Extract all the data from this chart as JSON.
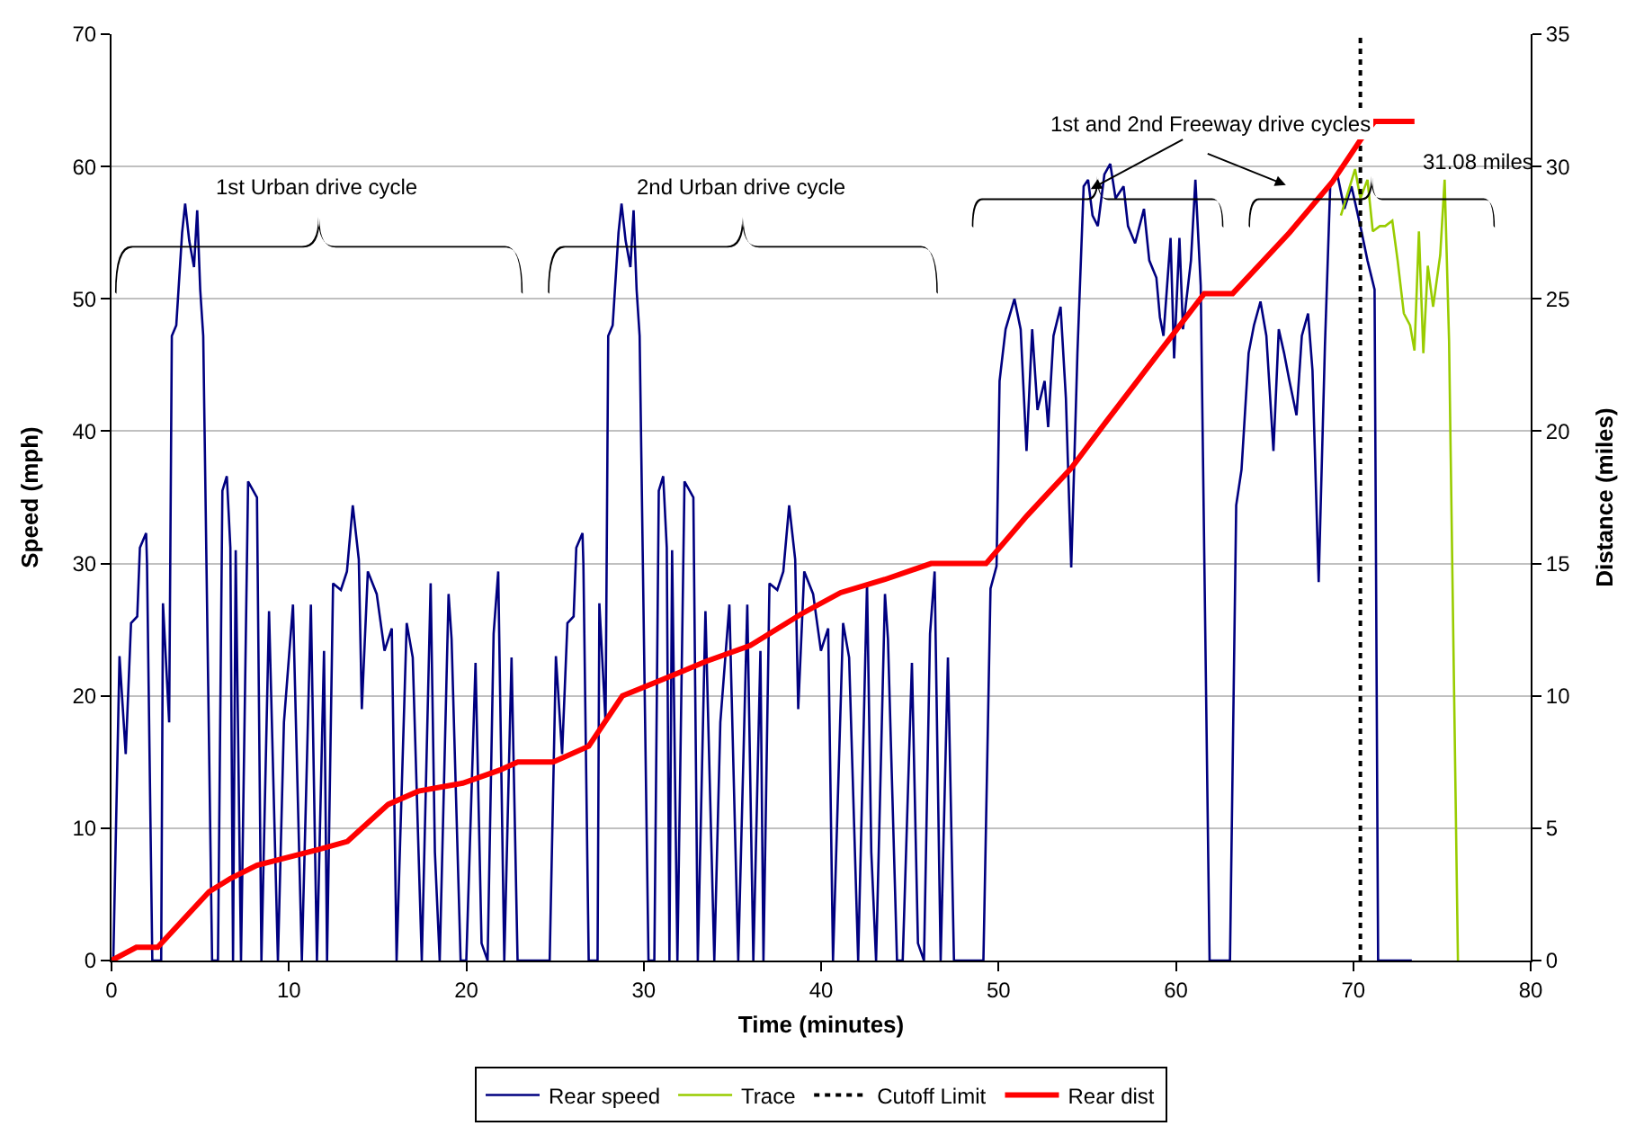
{
  "chart_data": {
    "type": "line",
    "xlabel": "Time (minutes)",
    "ylabel": "Speed (mph)",
    "y2label": "Distance (miles)",
    "xlim": [
      0,
      80
    ],
    "xticks": [
      0,
      10,
      20,
      30,
      40,
      50,
      60,
      70,
      80
    ],
    "ylim": [
      0,
      70
    ],
    "yticks": [
      0,
      10,
      20,
      30,
      40,
      50,
      60,
      70
    ],
    "y2lim": [
      0,
      35
    ],
    "y2ticks": [
      0,
      5,
      10,
      15,
      20,
      25,
      30,
      35
    ],
    "grid": "y",
    "legend": "bottom",
    "marker": "none",
    "line_style": "solid",
    "series": [
      {
        "name": "Rear speed",
        "color": "#000080",
        "x": [
          0,
          0.1,
          0.45,
          0.8,
          1.1,
          1.45,
          1.6,
          1.95,
          2.0,
          2.3,
          2.8,
          2.9,
          3.25,
          3.4,
          3.65,
          3.98,
          4.15,
          4.38,
          4.65,
          4.83,
          5.0,
          5.17,
          5.67,
          6.0,
          6.25,
          6.5,
          6.7,
          6.85,
          7.0,
          7.3,
          7.7,
          8.2,
          8.45,
          8.88,
          9.38,
          9.72,
          10.23,
          10.73,
          11.24,
          11.58,
          11.98,
          12.15,
          12.49,
          12.93,
          13.27,
          13.6,
          13.94,
          14.11,
          14.45,
          14.95,
          15.39,
          15.8,
          16.07,
          16.64,
          16.98,
          17.49,
          17.99,
          18.23,
          18.5,
          19.0,
          19.17,
          19.68,
          20.0,
          20.52,
          20.86,
          21.2,
          21.54,
          21.8,
          22.14,
          22.55,
          22.89,
          24.7,
          25.05,
          25.4,
          25.7,
          26.05,
          26.2,
          26.55,
          26.6,
          26.9,
          27.4,
          27.5,
          27.85,
          28.0,
          28.25,
          28.58,
          28.75,
          28.98,
          29.25,
          29.43,
          29.6,
          29.77,
          30.27,
          30.6,
          30.85,
          31.1,
          31.3,
          31.45,
          31.6,
          31.9,
          32.3,
          32.8,
          33.05,
          33.48,
          33.98,
          34.32,
          34.83,
          35.33,
          35.84,
          36.18,
          36.58,
          36.75,
          37.09,
          37.53,
          37.87,
          38.2,
          38.54,
          38.71,
          39.05,
          39.55,
          39.99,
          40.4,
          40.67,
          41.24,
          41.58,
          42.09,
          42.59,
          42.83,
          43.1,
          43.6,
          43.77,
          44.28,
          44.6,
          45.12,
          45.46,
          45.8,
          46.14,
          46.4,
          46.74,
          47.15,
          47.49,
          49.15,
          49.55,
          49.89,
          50.06,
          50.4,
          50.9,
          51.25,
          51.58,
          51.9,
          52.2,
          52.6,
          52.8,
          53.1,
          53.5,
          53.8,
          54.1,
          54.45,
          54.8,
          55.05,
          55.3,
          55.6,
          55.97,
          56.3,
          56.6,
          57.05,
          57.3,
          57.7,
          58.2,
          58.5,
          58.9,
          59.1,
          59.3,
          59.7,
          59.9,
          60.2,
          60.4,
          60.85,
          61.1,
          61.4,
          61.9,
          63.05,
          63.4,
          63.7,
          64.1,
          64.4,
          64.77,
          65.1,
          65.5,
          65.8,
          66.1,
          66.4,
          66.8,
          67.1,
          67.45,
          67.7,
          68.05,
          68.4,
          68.7,
          69.1,
          69.5,
          69.9,
          70.4,
          70.8,
          71.2,
          71.4,
          73.3
        ],
        "values": [
          0,
          0,
          23,
          15.6,
          25.5,
          26,
          31.2,
          32.3,
          30,
          0,
          0,
          27,
          18,
          47.2,
          48,
          55,
          57.2,
          54.4,
          52.4,
          56.7,
          50.7,
          47.2,
          0,
          0,
          35.5,
          36.6,
          31.2,
          0,
          31,
          0,
          36.2,
          35,
          0,
          26.4,
          0,
          18,
          26.9,
          0,
          26.9,
          0,
          23.4,
          0,
          28.5,
          28,
          29.4,
          34.4,
          30.3,
          19,
          29.4,
          27.7,
          23.4,
          25.1,
          0,
          25.5,
          22.9,
          0,
          28.5,
          8.2,
          0,
          27.7,
          24.3,
          0,
          0,
          22.5,
          1.3,
          0,
          24.7,
          29.4,
          0,
          22.9,
          0,
          0,
          23,
          15.6,
          25.5,
          26,
          31.2,
          32.3,
          30,
          0,
          0,
          27,
          18,
          47.2,
          48,
          55,
          57.2,
          54.4,
          52.4,
          56.7,
          50.7,
          47.2,
          0,
          0,
          35.5,
          36.6,
          31.2,
          0,
          31,
          0,
          36.2,
          35,
          0,
          26.4,
          0,
          18,
          26.9,
          0,
          26.9,
          0,
          23.4,
          0,
          28.5,
          28,
          29.4,
          34.4,
          30.3,
          19,
          29.4,
          27.7,
          23.4,
          25.1,
          0,
          25.5,
          22.9,
          0,
          28.5,
          8.2,
          0,
          27.7,
          24.3,
          0,
          0,
          22.5,
          1.3,
          0,
          24.7,
          29.4,
          0,
          22.9,
          0,
          0,
          28.1,
          29.8,
          43.8,
          47.7,
          50,
          47.7,
          38.5,
          47.7,
          41.6,
          43.8,
          40.3,
          47.2,
          49.4,
          42.5,
          29.7,
          45.9,
          58.5,
          59,
          56.3,
          55.5,
          59.4,
          60.2,
          57.6,
          58.5,
          55.5,
          54.2,
          56.8,
          52.9,
          51.6,
          48.6,
          47.2,
          54.6,
          45.5,
          54.6,
          47.7,
          52.9,
          59,
          51,
          0,
          0,
          34.4,
          37.1,
          45.9,
          48,
          49.8,
          47.2,
          38.5,
          47.7,
          45.9,
          43.8,
          41.2,
          47.2,
          48.9,
          44.6,
          28.6,
          46.4,
          58.5,
          59.4,
          56.8,
          58.5,
          55.5,
          52.9,
          50.7,
          0,
          0
        ]
      },
      {
        "name": "Trace",
        "color": "#99cc00",
        "x": [
          69.3,
          69.6,
          70.1,
          70.4,
          70.8,
          71.1,
          71.5,
          71.8,
          72.2,
          72.5,
          72.85,
          73.2,
          73.45,
          73.7,
          73.95,
          74.2,
          74.5,
          74.9,
          75.15,
          75.4,
          75.9
        ],
        "values": [
          56.3,
          57.6,
          59.8,
          57.6,
          59,
          55.1,
          55.5,
          55.5,
          55.9,
          52.9,
          48.9,
          48,
          46.1,
          55.1,
          45.9,
          52.5,
          49.4,
          53.3,
          59,
          46.8,
          0
        ]
      },
      {
        "name": "Rear dist",
        "color": "#ff0000",
        "axis": "y2",
        "x": [
          0,
          1.4,
          2.6,
          5.5,
          6.7,
          8.2,
          11.7,
          13.3,
          15.6,
          17.3,
          19.8,
          21.9,
          22.9,
          24.9,
          26.9,
          28.8,
          31,
          33.5,
          36,
          38.9,
          41.1,
          43.6,
          46.2,
          49.3,
          51.6,
          54.1,
          56,
          61.6,
          63.2,
          66.4,
          68.8,
          70.4,
          71.2,
          73.45
        ],
        "values": [
          0,
          0.5,
          0.5,
          2.6,
          3.1,
          3.6,
          4.2,
          4.5,
          5.9,
          6.4,
          6.7,
          7.2,
          7.5,
          7.5,
          8.1,
          10,
          10.6,
          11.3,
          11.9,
          13.1,
          13.9,
          14.4,
          15,
          15,
          16.8,
          18.6,
          20.3,
          25.2,
          25.2,
          27.5,
          29.4,
          31,
          31.7,
          31.7
        ]
      }
    ],
    "ref_lines": [
      {
        "axis": "x",
        "value": 70.4,
        "label": "Cutoff Limit",
        "color": "#000000",
        "line_style": "dotted"
      }
    ],
    "annotations": [
      "1st Urban drive cycle",
      "2nd Urban drive cycle",
      {
        "text": "1st and 2nd Freeway drive cycles",
        "x": 55.2,
        "y": 58.3
      },
      "31.08 miles"
    ]
  }
}
